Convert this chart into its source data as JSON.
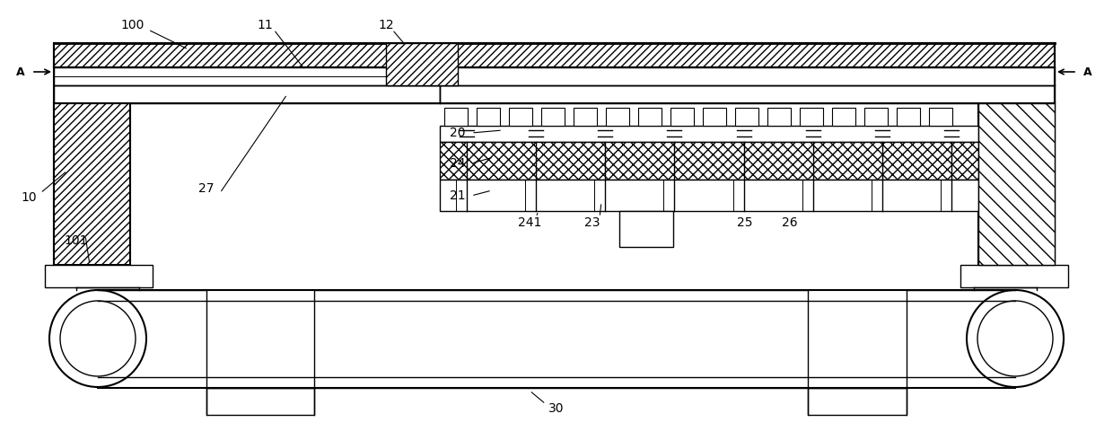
{
  "bg_color": "#ffffff",
  "line_color": "#000000",
  "fig_width": 12.4,
  "fig_height": 4.9,
  "dpi": 100
}
